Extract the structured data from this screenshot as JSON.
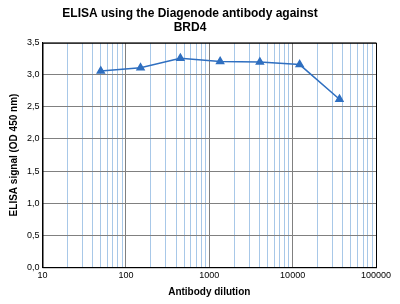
{
  "chart_data": {
    "type": "line",
    "title": [
      "ELISA using the Diagenode antibody against",
      "BRD4"
    ],
    "x_label": "Antibody dilution",
    "y_label": "ELISA signal (OD 450 nm)",
    "x": [
      50,
      150,
      450,
      1350,
      4050,
      12150,
      36450
    ],
    "values": [
      3.06,
      3.11,
      3.26,
      3.21,
      3.2,
      3.16,
      2.62
    ],
    "color": "#2f6fc0",
    "marker": "triangle",
    "log": "x",
    "grid": true,
    "xlim": [
      10,
      100000
    ],
    "xticks": [
      10,
      100,
      1000,
      10000,
      100000
    ],
    "ylim": [
      0,
      3.5
    ],
    "yticks": [
      {
        "value": 0,
        "label": "0,0"
      },
      {
        "value": 0.5,
        "label": "0,5"
      },
      {
        "value": 1,
        "label": "1,0"
      },
      {
        "value": 1.5,
        "label": "1,5"
      },
      {
        "value": 2,
        "label": "2,0"
      },
      {
        "value": 2.5,
        "label": "2,5"
      },
      {
        "value": 3,
        "label": "3,0"
      },
      {
        "value": 3.5,
        "label": "3,5"
      }
    ]
  }
}
